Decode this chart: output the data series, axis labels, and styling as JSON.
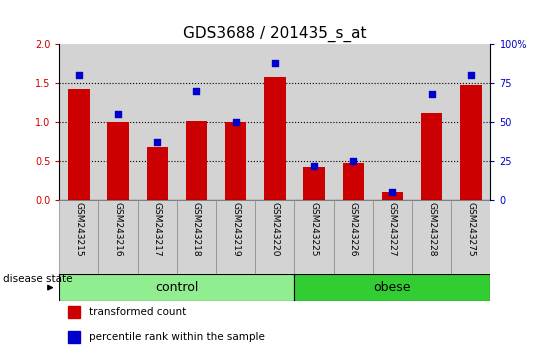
{
  "title": "GDS3688 / 201435_s_at",
  "samples": [
    "GSM243215",
    "GSM243216",
    "GSM243217",
    "GSM243218",
    "GSM243219",
    "GSM243220",
    "GSM243225",
    "GSM243226",
    "GSM243227",
    "GSM243228",
    "GSM243275"
  ],
  "transformed_count": [
    1.42,
    1.0,
    0.68,
    1.02,
    1.0,
    1.58,
    0.42,
    0.47,
    0.1,
    1.12,
    1.48
  ],
  "percentile_rank": [
    80,
    55,
    37,
    70,
    50,
    88,
    22,
    25,
    5,
    68,
    80
  ],
  "groups": [
    {
      "label": "control",
      "start": 0,
      "end": 5,
      "color": "#90EE90"
    },
    {
      "label": "obese",
      "start": 6,
      "end": 10,
      "color": "#32CD32"
    }
  ],
  "bar_color": "#CC0000",
  "dot_color": "#0000CC",
  "left_ylim": [
    0,
    2
  ],
  "right_ylim": [
    0,
    100
  ],
  "left_yticks": [
    0,
    0.5,
    1.0,
    1.5,
    2.0
  ],
  "right_yticks": [
    0,
    25,
    50,
    75,
    100
  ],
  "right_yticklabels": [
    "0",
    "25",
    "50",
    "75",
    "100%"
  ],
  "dotted_yvals": [
    0.5,
    1.0,
    1.5
  ],
  "left_tick_color": "#CC0000",
  "right_tick_color": "#0000CC",
  "title_fontsize": 11,
  "tick_label_fontsize": 7,
  "sample_label_fontsize": 6.5,
  "group_label_fontsize": 9,
  "disease_state_label": "disease state",
  "legend_items": [
    {
      "label": "transformed count",
      "color": "#CC0000"
    },
    {
      "label": "percentile rank within the sample",
      "color": "#0000CC"
    }
  ],
  "bar_area_bg": "#ffffff",
  "col_bg": "#d3d3d3",
  "bar_width": 0.55
}
